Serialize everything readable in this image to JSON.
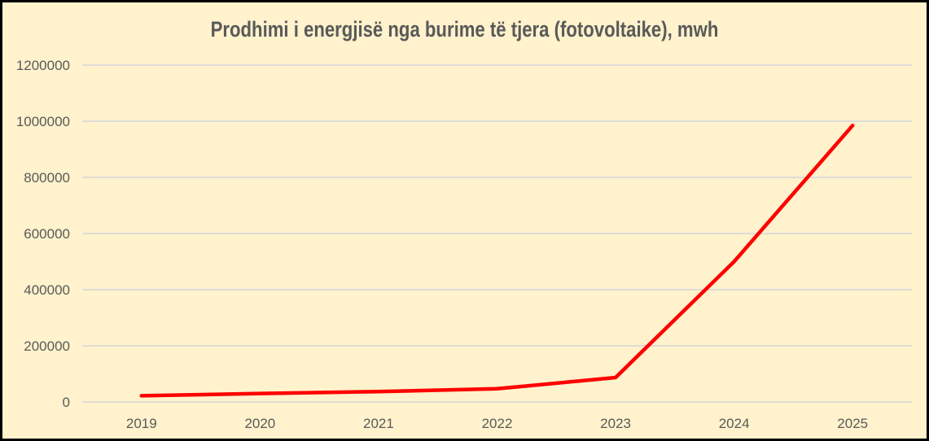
{
  "window": {
    "background_color": "#FFF2CC",
    "border_color": "#000000"
  },
  "chart_data": {
    "type": "line",
    "title": "Prodhimi i energjisë nga burime të tjera (fotovoltaike), mwh",
    "categories": [
      "2019",
      "2020",
      "2021",
      "2022",
      "2023",
      "2024",
      "2025"
    ],
    "series": [
      {
        "name": "prodhimi-fotovoltaike-mwh",
        "color": "#FF0000",
        "values": [
          22000,
          30000,
          37000,
          47000,
          87000,
          500000,
          985000
        ]
      }
    ],
    "xlabel": "",
    "ylabel": "",
    "ylim": [
      0,
      1200000
    ],
    "y_tick_step": 200000,
    "y_tick_labels": [
      "0",
      "200000",
      "400000",
      "600000",
      "800000",
      "1000000",
      "1200000"
    ],
    "grid": "horizontal",
    "gridline_color": "#D9D9D9",
    "text_color": "#595959",
    "legend": "none"
  }
}
